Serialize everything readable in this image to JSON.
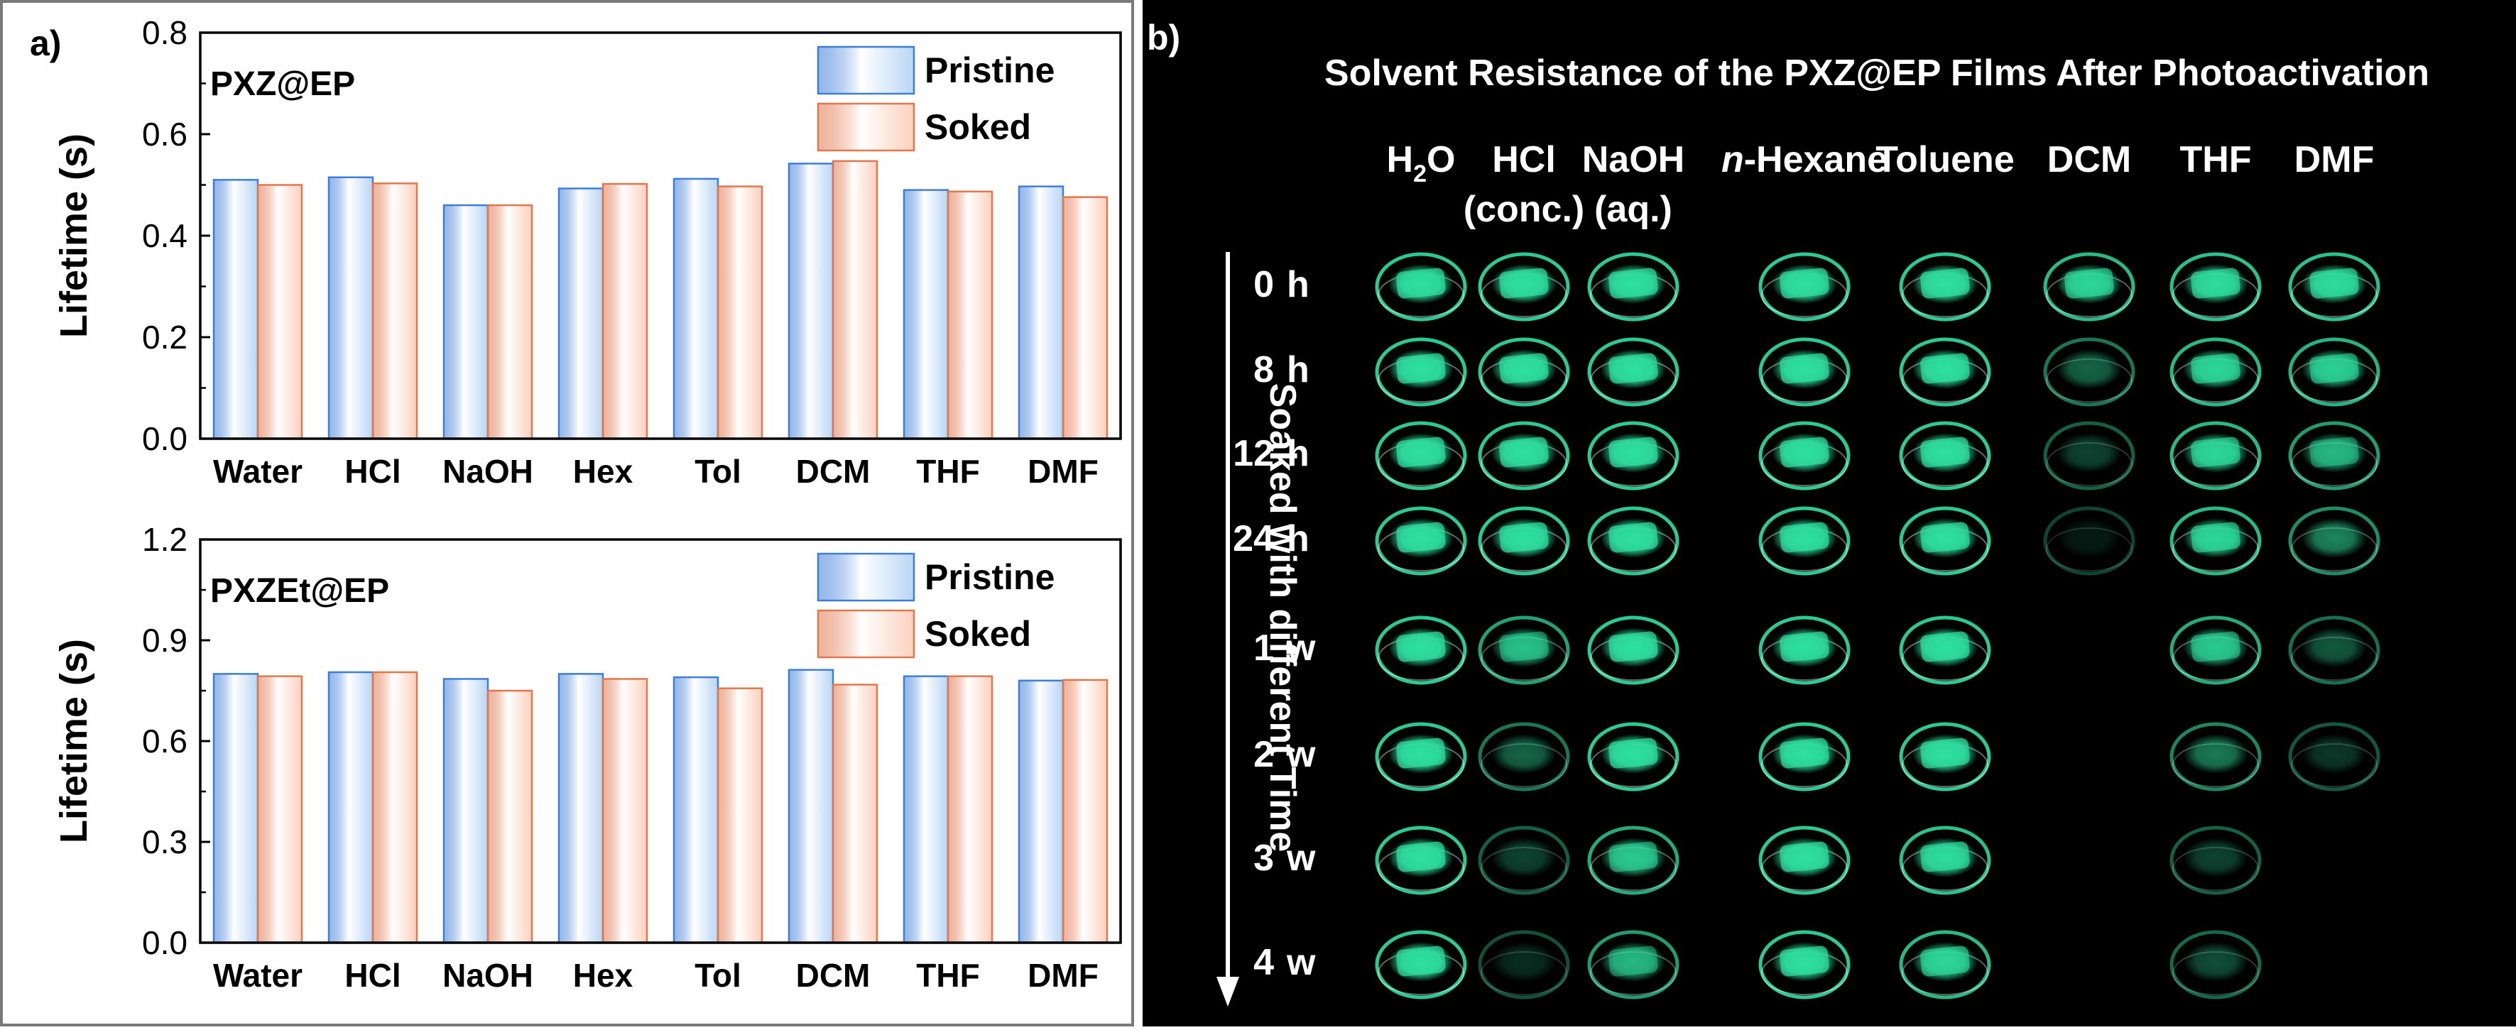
{
  "panel_a": {
    "label": "a)",
    "colors": {
      "pristine_fill": "#b9d6f5",
      "pristine_edge": "#3f7ed8",
      "soaked_fill": "#fbd0bd",
      "soaked_edge": "#e0784f",
      "frame": "#000000"
    }
  },
  "chart_data": [
    {
      "type": "bar",
      "title": "PXZ@EP",
      "ylabel": "Lifetime (s)",
      "xlabel": "",
      "ylim": [
        0,
        0.8
      ],
      "yticks": [
        "0.0",
        "0.2",
        "0.4",
        "0.6",
        "0.8"
      ],
      "ytick_values": [
        0,
        0.2,
        0.4,
        0.6,
        0.8
      ],
      "categories": [
        "Water",
        "HCl",
        "NaOH",
        "Hex",
        "Tol",
        "DCM",
        "THF",
        "DMF"
      ],
      "series": [
        {
          "name": "Pristine",
          "values": [
            0.51,
            0.515,
            0.46,
            0.493,
            0.512,
            0.542,
            0.49,
            0.497
          ]
        },
        {
          "name": "Soked",
          "values": [
            0.5,
            0.503,
            0.46,
            0.502,
            0.497,
            0.547,
            0.487,
            0.476
          ]
        }
      ],
      "legend": "top-right",
      "grid": false
    },
    {
      "type": "bar",
      "title": "PXZEt@EP",
      "ylabel": "Lifetime (s)",
      "xlabel": "",
      "ylim": [
        0,
        1.2
      ],
      "yticks": [
        "0.0",
        "0.3",
        "0.6",
        "0.9",
        "1.2"
      ],
      "ytick_values": [
        0,
        0.3,
        0.6,
        0.9,
        1.2
      ],
      "categories": [
        "Water",
        "HCl",
        "NaOH",
        "Hex",
        "Tol",
        "DCM",
        "THF",
        "DMF"
      ],
      "series": [
        {
          "name": "Pristine",
          "values": [
            0.8,
            0.805,
            0.785,
            0.8,
            0.79,
            0.812,
            0.793,
            0.78
          ]
        },
        {
          "name": "Soked",
          "values": [
            0.793,
            0.805,
            0.75,
            0.785,
            0.757,
            0.768,
            0.793,
            0.782
          ]
        }
      ],
      "legend": "top-right",
      "grid": false
    }
  ],
  "panel_b": {
    "label": "b)",
    "title": "Solvent Resistance of the PXZ@EP Films After Photoactivation",
    "axis_label": "Soaked with different Time",
    "glow_color": "#2fe0a2",
    "solvents": [
      {
        "line1": "H",
        "sub": "2",
        "line1b": "O",
        "line2": ""
      },
      {
        "line1": "HCl",
        "sub": "",
        "line1b": "",
        "line2": "(conc.)"
      },
      {
        "line1": "NaOH",
        "sub": "",
        "line1b": "",
        "line2": "(aq.)"
      },
      {
        "line1": "n",
        "sub": "",
        "line1b": "-Hexane",
        "line2": "",
        "italic_prefix": true
      },
      {
        "line1": "Toluene",
        "sub": "",
        "line1b": "",
        "line2": ""
      },
      {
        "line1": "DCM",
        "sub": "",
        "line1b": "",
        "line2": ""
      },
      {
        "line1": "THF",
        "sub": "",
        "line1b": "",
        "line2": ""
      },
      {
        "line1": "DMF",
        "sub": "",
        "line1b": "",
        "line2": ""
      }
    ],
    "times": [
      {
        "num": "0",
        "unit": "h"
      },
      {
        "num": "8",
        "unit": "h"
      },
      {
        "num": "12",
        "unit": "h"
      },
      {
        "num": "24",
        "unit": "h"
      },
      {
        "num": "1",
        "unit": "w"
      },
      {
        "num": "2",
        "unit": "w"
      },
      {
        "num": "3",
        "unit": "w"
      },
      {
        "num": "4",
        "unit": "w"
      }
    ],
    "brightness": [
      [
        1.0,
        1.0,
        1.0,
        1.0,
        1.0,
        0.9,
        0.95,
        0.95
      ],
      [
        1.0,
        1.0,
        1.0,
        1.0,
        1.0,
        0.45,
        0.9,
        0.85
      ],
      [
        1.0,
        1.0,
        1.0,
        1.0,
        1.0,
        0.3,
        0.9,
        0.7
      ],
      [
        1.0,
        1.0,
        1.0,
        1.0,
        1.0,
        0.12,
        0.9,
        0.6
      ],
      [
        1.0,
        0.75,
        1.0,
        1.0,
        1.0,
        0,
        0.8,
        0.4
      ],
      [
        1.0,
        0.45,
        1.0,
        1.0,
        1.0,
        0,
        0.55,
        0.25
      ],
      [
        1.0,
        0.3,
        0.8,
        1.0,
        0.95,
        0,
        0.3,
        0
      ],
      [
        1.0,
        0.2,
        0.7,
        1.0,
        0.9,
        0,
        0.35,
        0
      ]
    ]
  }
}
